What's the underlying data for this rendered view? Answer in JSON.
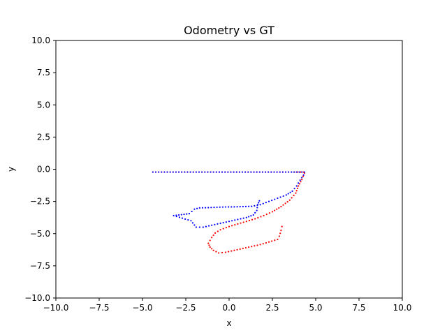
{
  "chart_data": {
    "type": "scatter",
    "title": "Odometry vs GT",
    "xlabel": "x",
    "ylabel": "y",
    "xlim": [
      -10,
      10
    ],
    "ylim": [
      -10,
      10
    ],
    "xticks": [
      "−10.0",
      "−7.5",
      "−5.0",
      "−2.5",
      "0.0",
      "2.5",
      "5.0",
      "7.5",
      "10.0"
    ],
    "yticks": [
      "−10.0",
      "−7.5",
      "−5.0",
      "−2.5",
      "0.0",
      "2.5",
      "5.0",
      "7.5",
      "10.0"
    ],
    "xtick_values": [
      -10,
      -7.5,
      -5,
      -2.5,
      0,
      2.5,
      5,
      7.5,
      10
    ],
    "ytick_values": [
      -10,
      -7.5,
      -5,
      -2.5,
      0,
      2.5,
      5,
      7.5,
      10
    ],
    "grid": false,
    "legend": "none",
    "series": [
      {
        "color": "#ff0000",
        "marker": "dot",
        "points": [
          [
            -4.4,
            -0.22
          ],
          [
            -3.4,
            -0.22
          ],
          [
            -2.4,
            -0.22
          ],
          [
            -1.4,
            -0.22
          ],
          [
            -0.4,
            -0.22
          ],
          [
            0.6,
            -0.22
          ],
          [
            1.6,
            -0.22
          ],
          [
            2.6,
            -0.22
          ],
          [
            3.6,
            -0.22
          ],
          [
            4.3,
            -0.22
          ],
          [
            4.35,
            -0.3
          ],
          [
            4.2,
            -0.8
          ],
          [
            4.0,
            -1.3
          ],
          [
            3.85,
            -1.85
          ],
          [
            3.5,
            -2.4
          ],
          [
            3.0,
            -2.9
          ],
          [
            2.5,
            -3.3
          ],
          [
            2.0,
            -3.6
          ],
          [
            1.5,
            -3.85
          ],
          [
            1.0,
            -4.05
          ],
          [
            0.5,
            -4.25
          ],
          [
            0.0,
            -4.45
          ],
          [
            -0.5,
            -4.7
          ],
          [
            -0.8,
            -4.95
          ],
          [
            -1.0,
            -5.3
          ],
          [
            -1.2,
            -5.75
          ],
          [
            -1.1,
            -6.05
          ],
          [
            -0.9,
            -6.3
          ],
          [
            -0.6,
            -6.5
          ],
          [
            -0.2,
            -6.45
          ],
          [
            0.3,
            -6.3
          ],
          [
            0.8,
            -6.15
          ],
          [
            1.3,
            -6.0
          ],
          [
            1.8,
            -5.85
          ],
          [
            2.3,
            -5.65
          ],
          [
            2.8,
            -5.45
          ],
          [
            2.9,
            -5.2
          ],
          [
            3.0,
            -4.75
          ],
          [
            3.05,
            -4.45
          ]
        ]
      },
      {
        "color": "#0000ff",
        "marker": "dot",
        "points": [
          [
            -4.4,
            -0.22
          ],
          [
            -3.4,
            -0.22
          ],
          [
            -2.4,
            -0.22
          ],
          [
            -1.4,
            -0.22
          ],
          [
            -0.4,
            -0.22
          ],
          [
            0.6,
            -0.22
          ],
          [
            1.6,
            -0.22
          ],
          [
            2.6,
            -0.22
          ],
          [
            3.6,
            -0.22
          ],
          [
            4.35,
            -0.22
          ],
          [
            4.3,
            -0.45
          ],
          [
            4.1,
            -0.85
          ],
          [
            3.9,
            -1.3
          ],
          [
            3.65,
            -1.7
          ],
          [
            3.3,
            -2.0
          ],
          [
            2.8,
            -2.25
          ],
          [
            2.3,
            -2.5
          ],
          [
            1.8,
            -2.75
          ],
          [
            1.3,
            -2.88
          ],
          [
            0.8,
            -2.9
          ],
          [
            0.3,
            -2.92
          ],
          [
            -0.2,
            -2.93
          ],
          [
            -0.7,
            -2.95
          ],
          [
            -1.2,
            -2.98
          ],
          [
            -1.7,
            -3.0
          ],
          [
            -2.0,
            -3.1
          ],
          [
            -2.3,
            -3.45
          ],
          [
            -3.2,
            -3.6
          ],
          [
            -2.2,
            -4.0
          ],
          [
            -1.9,
            -4.5
          ],
          [
            -1.5,
            -4.5
          ],
          [
            -1.0,
            -4.35
          ],
          [
            -0.5,
            -4.2
          ],
          [
            0.0,
            -4.05
          ],
          [
            0.5,
            -3.9
          ],
          [
            1.0,
            -3.75
          ],
          [
            1.4,
            -3.55
          ],
          [
            1.6,
            -3.2
          ],
          [
            1.65,
            -2.75
          ],
          [
            1.75,
            -2.45
          ]
        ]
      }
    ]
  }
}
